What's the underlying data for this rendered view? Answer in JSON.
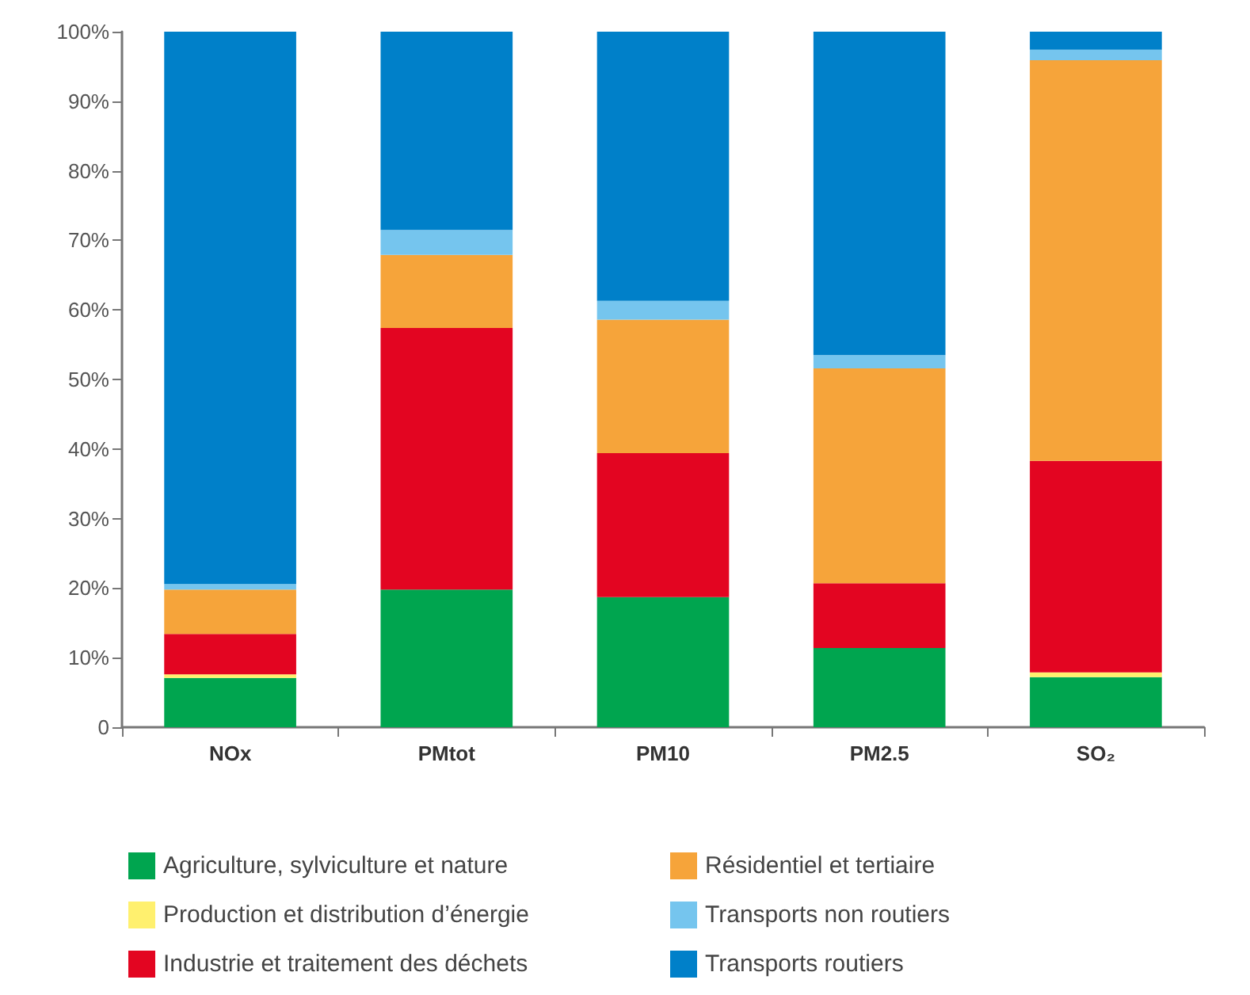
{
  "chart_data": {
    "type": "bar",
    "stacked": true,
    "categories": [
      "NOx",
      "PMtot",
      "PM10",
      "PM2.5",
      "SO₂"
    ],
    "series": [
      {
        "name": "Agriculture, sylviculture et nature",
        "color": "#00a54f",
        "values": [
          7.1,
          19.8,
          18.7,
          11.4,
          7.2
        ]
      },
      {
        "name": "Production et distribution d’énergie",
        "color": "#fff06e",
        "values": [
          0.5,
          0,
          0,
          0,
          0.7
        ]
      },
      {
        "name": "Industrie et traitement des déchets",
        "color": "#e30521",
        "values": [
          5.8,
          37.6,
          20.7,
          9.3,
          30.4
        ]
      },
      {
        "name": "Résidentiel et tertiaire",
        "color": "#f6a43a",
        "values": [
          6.4,
          10.5,
          19.2,
          30.9,
          57.6
        ]
      },
      {
        "name": "Transports non routiers",
        "color": "#75c5ee",
        "values": [
          0.8,
          3.6,
          2.7,
          1.9,
          1.5
        ]
      },
      {
        "name": "Transports routiers",
        "color": "#0080c9",
        "values": [
          79.4,
          28.5,
          38.7,
          46.5,
          2.6
        ]
      }
    ],
    "ylim": [
      0,
      100
    ],
    "yticks": [
      0,
      {
        "value": 10,
        "label": "10%"
      },
      {
        "value": 20,
        "label": "20%"
      },
      {
        "value": 30,
        "label": "30%"
      },
      {
        "value": 40,
        "label": "40%"
      },
      {
        "value": 50,
        "label": "50%"
      },
      {
        "value": 60,
        "label": "60%"
      },
      {
        "value": 70,
        "label": "70%"
      },
      {
        "value": 80,
        "label": "80%"
      },
      {
        "value": 90,
        "label": "90%"
      },
      {
        "value": 100,
        "label": "100%"
      }
    ],
    "grid": false,
    "legend": "bottom"
  }
}
